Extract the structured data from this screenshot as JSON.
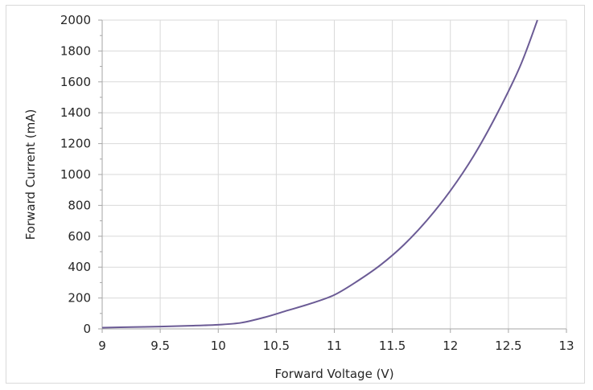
{
  "chart_data": {
    "type": "line",
    "title": "",
    "xlabel": "Forward Voltage (V)",
    "ylabel": "Forward Current (mA)",
    "xlim": [
      9,
      13
    ],
    "ylim": [
      0,
      2000
    ],
    "x_ticks": [
      "9",
      "9.5",
      "10",
      "10.5",
      "11",
      "11.5",
      "12",
      "12.5",
      "13"
    ],
    "y_ticks": [
      "0",
      "200",
      "400",
      "600",
      "800",
      "1000",
      "1200",
      "1400",
      "1600",
      "1800",
      "2000"
    ],
    "grid": true,
    "legend": "none",
    "series": [
      {
        "color": "#6b5b95",
        "x": [
          9.0,
          9.25,
          9.5,
          9.75,
          10.0,
          10.2,
          10.4,
          10.6,
          10.8,
          11.0,
          11.2,
          11.4,
          11.6,
          11.8,
          12.0,
          12.2,
          12.4,
          12.6,
          12.75
        ],
        "y": [
          8,
          12,
          15,
          20,
          27,
          40,
          75,
          120,
          165,
          220,
          310,
          415,
          545,
          705,
          895,
          1120,
          1390,
          1700,
          2000
        ]
      }
    ]
  }
}
